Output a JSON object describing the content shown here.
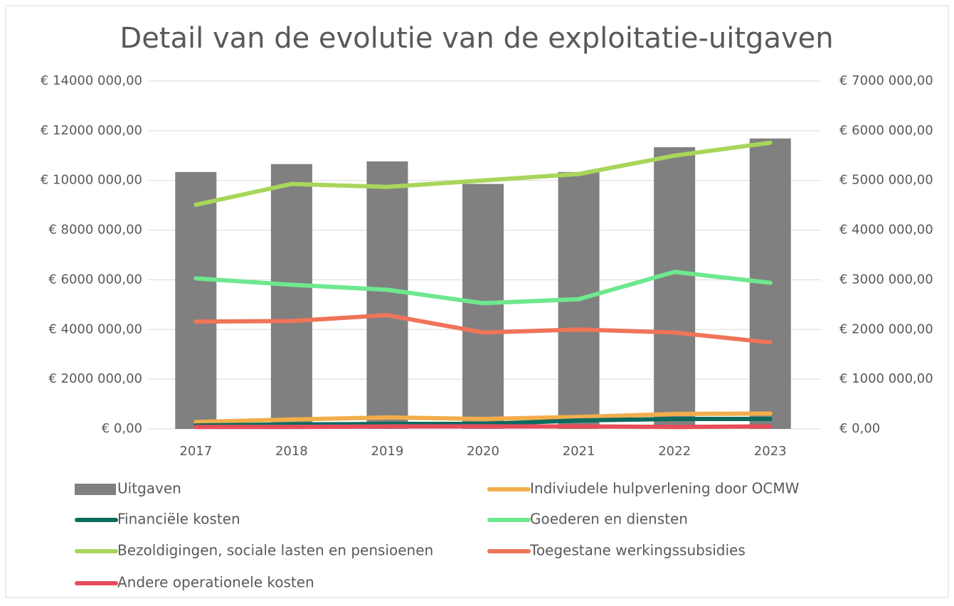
{
  "chart_data": {
    "type": "bar-line",
    "title": "Detail van de evolutie van de exploitatie-uitgaven",
    "categories": [
      "2017",
      "2018",
      "2019",
      "2020",
      "2021",
      "2022",
      "2023"
    ],
    "ylim": [
      0,
      14000000
    ],
    "yticks": [
      {
        "value": 0,
        "label": "€ 0,00"
      },
      {
        "value": 2000000,
        "label": "€ 2000 000,00"
      },
      {
        "value": 4000000,
        "label": "€ 4000 000,00"
      },
      {
        "value": 6000000,
        "label": "€ 6000 000,00"
      },
      {
        "value": 8000000,
        "label": "€ 8000 000,00"
      },
      {
        "value": 10000000,
        "label": "€ 10000 000,00"
      },
      {
        "value": 12000000,
        "label": "€ 12000 000,00"
      },
      {
        "value": 14000000,
        "label": "€ 14000 000,00"
      }
    ],
    "y2lim": [
      0,
      7000000
    ],
    "y2ticks": [
      {
        "value": 0,
        "label": "€ 0,00"
      },
      {
        "value": 1000000,
        "label": "€ 1000 000,00"
      },
      {
        "value": 2000000,
        "label": "€ 2000 000,00"
      },
      {
        "value": 3000000,
        "label": "€ 3000 000,00"
      },
      {
        "value": 4000000,
        "label": "€ 4000 000,00"
      },
      {
        "value": 5000000,
        "label": "€ 5000 000,00"
      },
      {
        "value": 6000000,
        "label": "€ 6000 000,00"
      },
      {
        "value": 7000000,
        "label": "€ 7000 000,00"
      }
    ],
    "grid": true,
    "legend": "bottom",
    "series": [
      {
        "name": "Uitgaven",
        "type": "bar",
        "color": "#808080",
        "values": [
          10340000,
          10660000,
          10770000,
          9860000,
          10340000,
          11340000,
          11690000
        ]
      },
      {
        "name": "Indiviudele hulpverlening door OCMW",
        "type": "line",
        "axis": "y2",
        "color": "#f2ad4b",
        "values": [
          140000,
          190000,
          230000,
          200000,
          240000,
          300000,
          310000
        ]
      },
      {
        "name": "Financiële kosten",
        "type": "line",
        "axis": "y2",
        "color": "#0b6b5e",
        "values": [
          70000,
          90000,
          100000,
          100000,
          170000,
          200000,
          200000
        ]
      },
      {
        "name": "Goederen en diensten",
        "type": "line",
        "axis": "y2",
        "color": "#6ee88f",
        "values": [
          3030000,
          2900000,
          2800000,
          2530000,
          2610000,
          3160000,
          2940000
        ]
      },
      {
        "name": "Bezoldigingen, sociale lasten en pensioenen",
        "type": "line",
        "axis": "y2",
        "color": "#a8d65a",
        "values": [
          4510000,
          4930000,
          4870000,
          5000000,
          5130000,
          5500000,
          5760000
        ]
      },
      {
        "name": "Toegestane werkingssubsidies",
        "type": "line",
        "axis": "y2",
        "color": "#f07458",
        "values": [
          2160000,
          2170000,
          2290000,
          1940000,
          2000000,
          1940000,
          1740000
        ]
      },
      {
        "name": "Andere operationele kosten",
        "type": "line",
        "axis": "y2",
        "color": "#e84c5a",
        "values": [
          40000,
          40000,
          50000,
          50000,
          50000,
          40000,
          50000
        ]
      }
    ]
  }
}
